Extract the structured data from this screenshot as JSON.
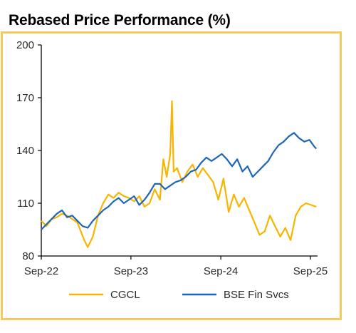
{
  "chart_data": {
    "type": "line",
    "title": "Rebased Price Performance (%)",
    "xlabel": "",
    "ylabel": "",
    "ylim": [
      80,
      200
    ],
    "yticks": [
      80,
      110,
      140,
      170,
      200
    ],
    "xlim": [
      "2022-09-01",
      "2025-09-30"
    ],
    "xticks": [
      {
        "label": "Sep-22",
        "date": "2022-09-01"
      },
      {
        "label": "Sep-23",
        "date": "2023-09-01"
      },
      {
        "label": "Sep-24",
        "date": "2024-09-01"
      },
      {
        "label": "Sep-25",
        "date": "2025-09-01"
      }
    ],
    "grid": false,
    "legend_position": "bottom",
    "series": [
      {
        "name": "CGCL",
        "color": "#f7b500",
        "points": [
          [
            "2022-09-01",
            100
          ],
          [
            "2022-09-22",
            97
          ],
          [
            "2022-10-13",
            101
          ],
          [
            "2022-11-03",
            102
          ],
          [
            "2022-11-24",
            104
          ],
          [
            "2022-12-15",
            103
          ],
          [
            "2023-01-05",
            101
          ],
          [
            "2023-01-26",
            99
          ],
          [
            "2023-02-09",
            94
          ],
          [
            "2023-02-23",
            89
          ],
          [
            "2023-03-09",
            85
          ],
          [
            "2023-03-30",
            91
          ],
          [
            "2023-04-20",
            103
          ],
          [
            "2023-05-11",
            110
          ],
          [
            "2023-06-01",
            115
          ],
          [
            "2023-06-22",
            113
          ],
          [
            "2023-07-13",
            116
          ],
          [
            "2023-08-03",
            114
          ],
          [
            "2023-08-24",
            113
          ],
          [
            "2023-09-14",
            111
          ],
          [
            "2023-10-05",
            114
          ],
          [
            "2023-10-26",
            108
          ],
          [
            "2023-11-16",
            110
          ],
          [
            "2023-12-07",
            118
          ],
          [
            "2023-12-28",
            112
          ],
          [
            "2024-01-11",
            135
          ],
          [
            "2024-01-25",
            125
          ],
          [
            "2024-02-08",
            138
          ],
          [
            "2024-02-15",
            168
          ],
          [
            "2024-02-22",
            128
          ],
          [
            "2024-03-07",
            130
          ],
          [
            "2024-03-28",
            122
          ],
          [
            "2024-04-18",
            128
          ],
          [
            "2024-05-09",
            132
          ],
          [
            "2024-05-30",
            125
          ],
          [
            "2024-06-20",
            130
          ],
          [
            "2024-07-11",
            126
          ],
          [
            "2024-08-01",
            122
          ],
          [
            "2024-08-22",
            112
          ],
          [
            "2024-09-12",
            124
          ],
          [
            "2024-10-03",
            105
          ],
          [
            "2024-10-24",
            115
          ],
          [
            "2024-11-14",
            108
          ],
          [
            "2024-12-05",
            113
          ],
          [
            "2024-12-26",
            106
          ],
          [
            "2025-01-16",
            99
          ],
          [
            "2025-02-06",
            92
          ],
          [
            "2025-02-27",
            94
          ],
          [
            "2025-03-20",
            103
          ],
          [
            "2025-04-10",
            97
          ],
          [
            "2025-05-01",
            91
          ],
          [
            "2025-05-22",
            96
          ],
          [
            "2025-06-12",
            89
          ],
          [
            "2025-07-03",
            103
          ],
          [
            "2025-07-24",
            108
          ],
          [
            "2025-08-14",
            110
          ],
          [
            "2025-09-04",
            109
          ],
          [
            "2025-09-25",
            108
          ]
        ]
      },
      {
        "name": "BSE Fin Svcs",
        "color": "#1f66b8",
        "points": [
          [
            "2022-09-01",
            95
          ],
          [
            "2022-09-22",
            98
          ],
          [
            "2022-10-13",
            101
          ],
          [
            "2022-11-03",
            104
          ],
          [
            "2022-11-24",
            106
          ],
          [
            "2022-12-15",
            102
          ],
          [
            "2023-01-05",
            103
          ],
          [
            "2023-01-26",
            100
          ],
          [
            "2023-02-16",
            97
          ],
          [
            "2023-03-09",
            96
          ],
          [
            "2023-03-30",
            100
          ],
          [
            "2023-04-20",
            103
          ],
          [
            "2023-05-11",
            106
          ],
          [
            "2023-06-01",
            108
          ],
          [
            "2023-06-22",
            111
          ],
          [
            "2023-07-13",
            113
          ],
          [
            "2023-08-03",
            110
          ],
          [
            "2023-08-24",
            112
          ],
          [
            "2023-09-14",
            114
          ],
          [
            "2023-10-05",
            109
          ],
          [
            "2023-10-26",
            112
          ],
          [
            "2023-11-16",
            116
          ],
          [
            "2023-12-07",
            121
          ],
          [
            "2023-12-28",
            121
          ],
          [
            "2024-01-18",
            118
          ],
          [
            "2024-02-08",
            120
          ],
          [
            "2024-02-29",
            122
          ],
          [
            "2024-03-21",
            123
          ],
          [
            "2024-04-11",
            125
          ],
          [
            "2024-05-02",
            128
          ],
          [
            "2024-05-23",
            129
          ],
          [
            "2024-06-13",
            133
          ],
          [
            "2024-07-04",
            136
          ],
          [
            "2024-07-25",
            134
          ],
          [
            "2024-08-15",
            136
          ],
          [
            "2024-09-05",
            138
          ],
          [
            "2024-09-26",
            135
          ],
          [
            "2024-10-17",
            131
          ],
          [
            "2024-11-07",
            135
          ],
          [
            "2024-11-28",
            128
          ],
          [
            "2024-12-19",
            131
          ],
          [
            "2025-01-09",
            125
          ],
          [
            "2025-01-30",
            128
          ],
          [
            "2025-02-20",
            131
          ],
          [
            "2025-03-13",
            134
          ],
          [
            "2025-04-03",
            139
          ],
          [
            "2025-04-24",
            143
          ],
          [
            "2025-05-15",
            145
          ],
          [
            "2025-06-05",
            148
          ],
          [
            "2025-06-26",
            150
          ],
          [
            "2025-07-17",
            147
          ],
          [
            "2025-08-07",
            145
          ],
          [
            "2025-08-28",
            146
          ],
          [
            "2025-09-18",
            142
          ],
          [
            "2025-09-25",
            141
          ]
        ]
      }
    ]
  }
}
